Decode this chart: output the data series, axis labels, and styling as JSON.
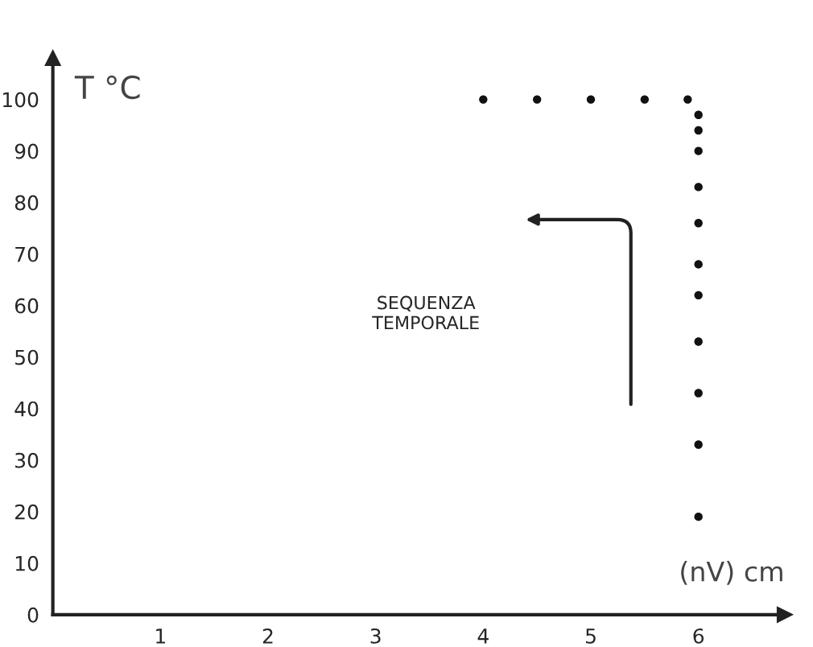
{
  "chart_data": {
    "type": "scatter",
    "xlabel": "(nV) cm",
    "ylabel": "T °C",
    "annotations": [
      "SEQUENZA\nTEMPORALE"
    ],
    "x": [
      4.0,
      4.5,
      5.0,
      5.5,
      5.9,
      6.0,
      6.0,
      6.0,
      6.0,
      6.0,
      6.0,
      6.0,
      6.0,
      6.0,
      6.0,
      6.0
    ],
    "series": [
      {
        "color": "#111111",
        "values": [
          100,
          100,
          100,
          100,
          100,
          97,
          94,
          90,
          83,
          76,
          68,
          62,
          53,
          43,
          33,
          19
        ]
      }
    ],
    "xlim": [
      0,
      6.8
    ],
    "ylim": [
      0,
      108
    ],
    "xticks": [
      1,
      2,
      3,
      4,
      5,
      6
    ],
    "yticks": [
      0,
      10,
      20,
      30,
      40,
      50,
      60,
      70,
      80,
      90,
      100
    ],
    "marker": "circle",
    "grid": false,
    "legend": false
  }
}
